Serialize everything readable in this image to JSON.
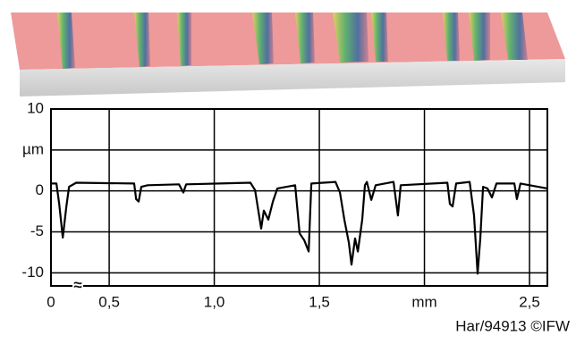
{
  "chart_data": {
    "type": "line",
    "x": [
      0.223,
      0.249,
      0.262,
      0.279,
      0.296,
      0.309,
      0.343,
      0.619,
      0.628,
      0.64,
      0.653,
      0.683,
      0.832,
      0.853,
      0.866,
      1.172,
      1.194,
      1.223,
      1.236,
      1.257,
      1.279,
      1.3,
      1.385,
      1.406,
      1.428,
      1.449,
      1.462,
      1.577,
      1.598,
      1.619,
      1.64,
      1.653,
      1.67,
      1.683,
      1.704,
      1.717,
      1.726,
      1.747,
      1.768,
      1.853,
      1.874,
      1.887,
      2.109,
      2.121,
      2.134,
      2.151,
      2.215,
      2.236,
      2.253,
      2.266,
      2.279,
      2.3,
      2.321,
      2.343,
      2.428,
      2.44,
      2.457,
      2.585
    ],
    "series": [
      {
        "color": "#000000",
        "values": [
          0.9,
          0.9,
          -1.6,
          -5.7,
          -1.9,
          0.5,
          1.0,
          0.9,
          -1.0,
          -1.3,
          0.5,
          0.7,
          0.8,
          -0.2,
          0.8,
          1.0,
          0.1,
          -4.6,
          -2.4,
          -3.5,
          -1.3,
          0.3,
          0.7,
          -5.2,
          -6.0,
          -7.4,
          0.9,
          1.1,
          -0.2,
          -3.5,
          -6.3,
          -9.0,
          -5.8,
          -7.4,
          -3.5,
          0.7,
          1.1,
          -1.1,
          0.7,
          1.1,
          -3.0,
          0.7,
          1.0,
          -1.6,
          -1.9,
          0.9,
          1.1,
          -3.0,
          -10.1,
          -5.8,
          0.5,
          0.3,
          -0.8,
          0.9,
          0.9,
          -1.0,
          0.9,
          0.3
        ]
      }
    ],
    "xlim": [
      0.223,
      2.585
    ],
    "ylim": [
      -11.6,
      10
    ],
    "xticks": [
      {
        "value": 0.5,
        "label": "0,5"
      },
      {
        "value": 1.0,
        "label": "1,0"
      },
      {
        "value": 1.5,
        "label": "1,5"
      },
      {
        "value": 2.0,
        "label": "mm"
      },
      {
        "value": 2.5,
        "label": "2,5"
      }
    ],
    "yticks": [
      10,
      {
        "value": 5,
        "label": "µm"
      },
      0,
      -5,
      -10
    ],
    "x_origin_label": "0",
    "axis_break": "≈",
    "credit": "Har/94913 ©IFW",
    "grid": true
  }
}
